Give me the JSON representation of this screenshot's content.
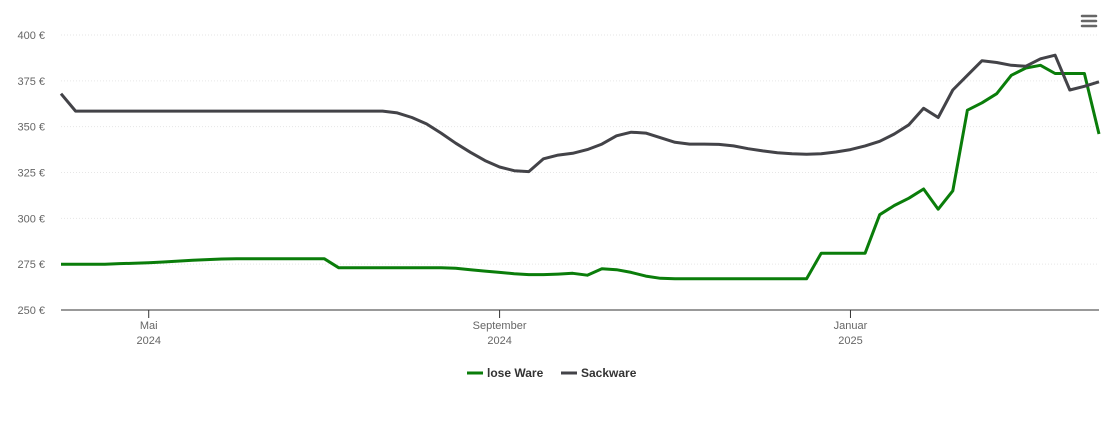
{
  "chart_data": {
    "type": "line",
    "categories": [
      null,
      null,
      null,
      null,
      null,
      null,
      [
        "Mai",
        "2024"
      ],
      null,
      null,
      null,
      null,
      null,
      null,
      null,
      null,
      null,
      null,
      null,
      null,
      null,
      null,
      null,
      null,
      null,
      null,
      null,
      null,
      null,
      null,
      null,
      [
        "September",
        "2024"
      ],
      null,
      null,
      null,
      null,
      null,
      null,
      null,
      null,
      null,
      null,
      null,
      null,
      null,
      null,
      null,
      null,
      null,
      null,
      null,
      null,
      null,
      null,
      null,
      [
        "Januar",
        "2025"
      ],
      null,
      null,
      null,
      null,
      null,
      null,
      null,
      null,
      null,
      null,
      null,
      null,
      null,
      null,
      null,
      null,
      null
    ],
    "series": [
      {
        "name": "lose Ware",
        "color": "#0a7d0a",
        "values": [
          275,
          275,
          275,
          275,
          275.3,
          275.5,
          275.8,
          276.2,
          276.7,
          277.1,
          277.5,
          277.8,
          278,
          278,
          278,
          278,
          278,
          278,
          278,
          273,
          273,
          273,
          273,
          273,
          273,
          273,
          273,
          272.8,
          272,
          271.2,
          270.5,
          269.8,
          269.3,
          269.3,
          269.6,
          270,
          269,
          272.5,
          272,
          270.5,
          268.5,
          267.3,
          267,
          267,
          267,
          267,
          267,
          267,
          267,
          267,
          267,
          267,
          281,
          281,
          281,
          281,
          302,
          307,
          311,
          316,
          305,
          315,
          359,
          363,
          368,
          378,
          382,
          383.5,
          379,
          379,
          379,
          346
        ]
      },
      {
        "name": "Sackware",
        "color": "#434348",
        "values": [
          368,
          358.5,
          358.5,
          358.5,
          358.5,
          358.5,
          358.5,
          358.5,
          358.5,
          358.5,
          358.5,
          358.5,
          358.5,
          358.5,
          358.5,
          358.5,
          358.5,
          358.5,
          358.5,
          358.5,
          358.5,
          358.5,
          358.5,
          357.5,
          355,
          351.5,
          346.5,
          341,
          336,
          331.5,
          328,
          326,
          325.5,
          332.5,
          334.5,
          335.5,
          337.5,
          340.5,
          345,
          347,
          346.5,
          344,
          341.5,
          340.5,
          340.5,
          340.3,
          339.5,
          338,
          336.8,
          335.8,
          335.2,
          335,
          335.2,
          336.2,
          337.5,
          339.5,
          342,
          346,
          351,
          360,
          355,
          370,
          378,
          386,
          385,
          383.5,
          383,
          387,
          389,
          370,
          372,
          374.5
        ]
      }
    ],
    "ylim": [
      250,
      400
    ],
    "yticks": [
      {
        "value": 250,
        "label": "250 €"
      },
      {
        "value": 275,
        "label": "275 €"
      },
      {
        "value": 300,
        "label": "300 €"
      },
      {
        "value": 325,
        "label": "325 €"
      },
      {
        "value": 350,
        "label": "350 €"
      },
      {
        "value": 375,
        "label": "375 €"
      },
      {
        "value": 400,
        "label": "400 €"
      }
    ],
    "grid": true
  }
}
